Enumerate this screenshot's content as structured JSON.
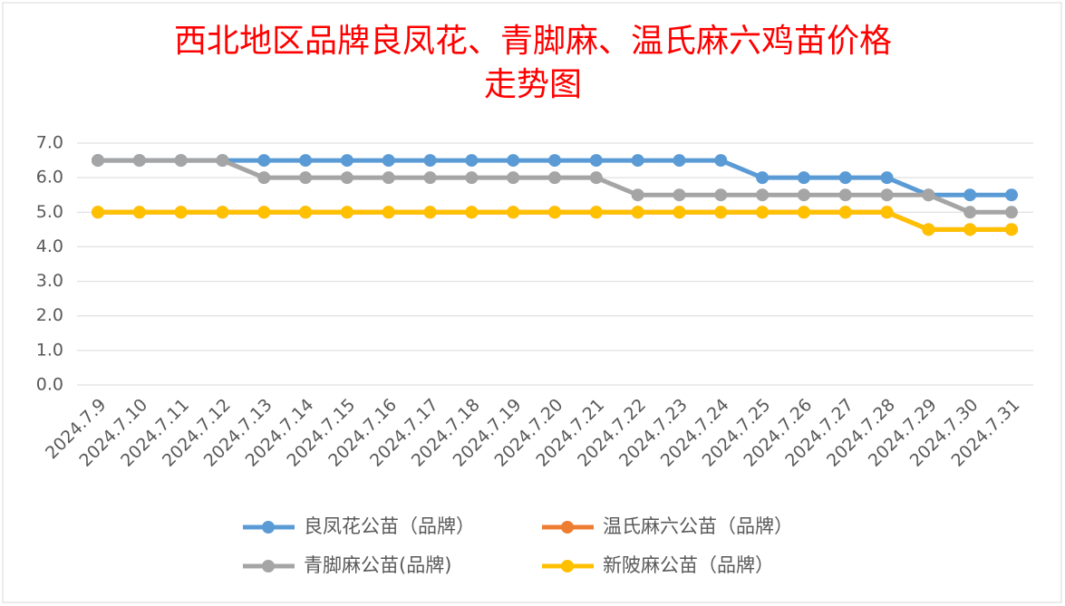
{
  "chart_data": {
    "type": "line",
    "title": [
      "西北地区品牌良凤花、青脚麻、温氏麻六鸡苗价格",
      "走势图"
    ],
    "categories": [
      "2024.7.9",
      "2024.7.10",
      "2024.7.11",
      "2024.7.12",
      "2024.7.13",
      "2024.7.14",
      "2024.7.15",
      "2024.7.16",
      "2024.7.17",
      "2024.7.18",
      "2024.7.19",
      "2024.7.20",
      "2024.7.21",
      "2024.7.22",
      "2024.7.23",
      "2024.7.24",
      "2024.7.25",
      "2024.7.26",
      "2024.7.27",
      "2024.7.28",
      "2024.7.29",
      "2024.7.30",
      "2024.7.31"
    ],
    "series": [
      {
        "name": "良凤花公苗（品牌）",
        "color": "#5b9bd5",
        "values": [
          6.5,
          6.5,
          6.5,
          6.5,
          6.5,
          6.5,
          6.5,
          6.5,
          6.5,
          6.5,
          6.5,
          6.5,
          6.5,
          6.5,
          6.5,
          6.5,
          6.0,
          6.0,
          6.0,
          6.0,
          5.5,
          5.5,
          5.5
        ]
      },
      {
        "name": "温氏麻六公苗（品牌）",
        "color": "#ed7d31",
        "values": [
          5.0,
          5.0,
          5.0,
          5.0,
          5.0,
          5.0,
          5.0,
          5.0,
          5.0,
          5.0,
          5.0,
          5.0,
          5.0,
          5.0,
          5.0,
          5.0,
          5.0,
          5.0,
          5.0,
          5.0,
          4.5,
          4.5,
          4.5
        ]
      },
      {
        "name": "青脚麻公苗(品牌)",
        "color": "#a5a5a5",
        "values": [
          6.5,
          6.5,
          6.5,
          6.5,
          6.0,
          6.0,
          6.0,
          6.0,
          6.0,
          6.0,
          6.0,
          6.0,
          6.0,
          5.5,
          5.5,
          5.5,
          5.5,
          5.5,
          5.5,
          5.5,
          5.5,
          5.0,
          5.0
        ]
      },
      {
        "name": "新陂麻公苗（品牌）",
        "color": "#ffc000",
        "values": [
          5.0,
          5.0,
          5.0,
          5.0,
          5.0,
          5.0,
          5.0,
          5.0,
          5.0,
          5.0,
          5.0,
          5.0,
          5.0,
          5.0,
          5.0,
          5.0,
          5.0,
          5.0,
          5.0,
          5.0,
          4.5,
          4.5,
          4.5
        ]
      }
    ],
    "ylim": [
      0,
      7
    ],
    "yticks": [
      {
        "value": 0,
        "label": "0.0"
      },
      {
        "value": 1,
        "label": "1.0"
      },
      {
        "value": 2,
        "label": "2.0"
      },
      {
        "value": 3,
        "label": "3.0"
      },
      {
        "value": 4,
        "label": "4.0"
      },
      {
        "value": 5,
        "label": "5.0"
      },
      {
        "value": 6,
        "label": "6.0"
      },
      {
        "value": 7,
        "label": "7.0"
      }
    ],
    "grid": true
  }
}
